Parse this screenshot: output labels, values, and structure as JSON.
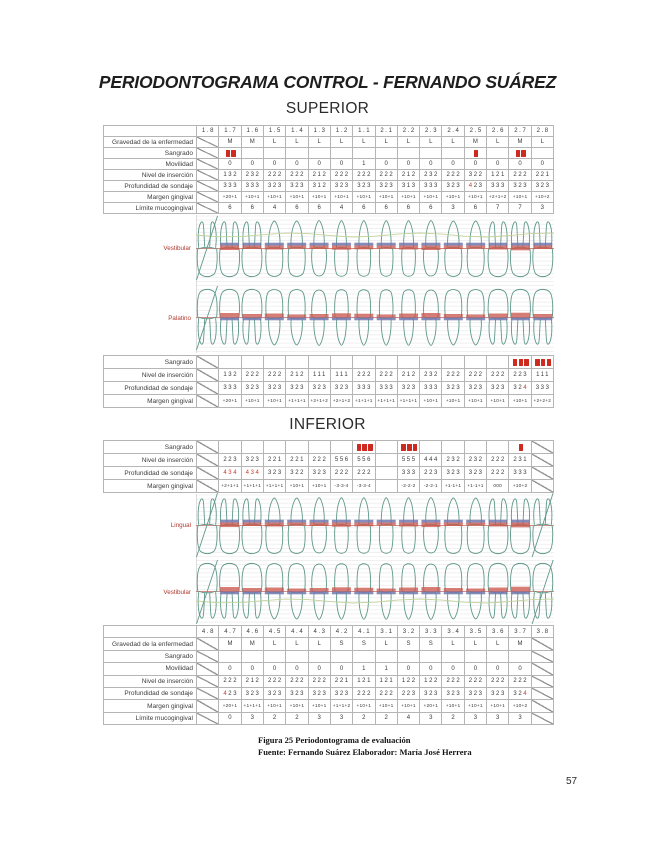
{
  "title": "PERIODONTOGRAMA CONTROL - FERNANDO SUÁREZ",
  "page_number": "57",
  "caption": {
    "line1": "Figura 25 Periodontograma de evaluación",
    "line2": "Fuente: Fernando Suárez Elaborador: María José Herrera"
  },
  "colors": {
    "bleeding_red": "#cf2a20",
    "red_value": "#c43b2e",
    "tooth_outline": "#5f9789",
    "insertion_blue": "#7178b0",
    "gingival_red": "#c9534a",
    "mucogingival_green": "#c3d39b",
    "view_label_red": "#b03a30",
    "grid_line": "#e8e8e8"
  },
  "superior": {
    "heading": "SUPERIOR",
    "tooth_numbers": [
      "1.8",
      "1.7",
      "1.6",
      "1.5",
      "1.4",
      "1.3",
      "1.2",
      "1.1",
      "2.1",
      "2.2",
      "2.3",
      "2.4",
      "2.5",
      "2.6",
      "2.7",
      "2.8"
    ],
    "views": {
      "vestibular": "Vestibular",
      "palatino": "Palatino"
    },
    "main_table": {
      "header": true,
      "missing": [
        0
      ],
      "rows": [
        {
          "label": "Gravedad de la enfermedad",
          "cells": [
            "",
            "M",
            "M",
            "L",
            "L",
            "L",
            "L",
            "L",
            "L",
            "L",
            "L",
            "L",
            "M",
            "L",
            "M",
            "L"
          ]
        },
        {
          "label": "Sangrado",
          "type": "sangrado",
          "cells": [
            0,
            2,
            0,
            0,
            0,
            0,
            0,
            0,
            0,
            0,
            0,
            0,
            1,
            0,
            2,
            0
          ]
        },
        {
          "label": "Movilidad",
          "cells": [
            "",
            "0",
            "0",
            "0",
            "0",
            "0",
            "0",
            "1",
            "0",
            "0",
            "0",
            "0",
            "0",
            "0",
            "0",
            "0"
          ]
        },
        {
          "label": "Nivel de inserción",
          "cells": [
            "",
            "132",
            "232",
            "222",
            "222",
            "212",
            "222",
            "222",
            "222",
            "212",
            "232",
            "222",
            "322",
            "121",
            "222",
            "221"
          ]
        },
        {
          "label": "Profundidad de sondaje",
          "cells": [
            "",
            "333",
            "333",
            "323",
            "323",
            "312",
            "323",
            "323",
            "323",
            "313",
            "333",
            "323",
            {
              "t": "423",
              "red": [
                0
              ]
            },
            "333",
            "323",
            "323"
          ]
        },
        {
          "label": "Margen gingival",
          "small": true,
          "cells": [
            "",
            "+20+1",
            "+10+1",
            "+10+1",
            "+10+1",
            "+10+1",
            "+10+1",
            "+10+1",
            "+10+1",
            "+10+1",
            "+10+1",
            "+10+1",
            "+10+1",
            "+2+1+2",
            "+10+1",
            "+10+2"
          ]
        },
        {
          "label": "Límite mucogingival",
          "cells": [
            "",
            "6",
            "6",
            "4",
            "6",
            "6",
            "4",
            "6",
            "6",
            "6",
            "6",
            "3",
            "6",
            "7",
            "7",
            "3"
          ]
        }
      ]
    },
    "palatal_table": {
      "header": false,
      "missing": [
        0
      ],
      "rows": [
        {
          "label": "Sangrado",
          "type": "sangrado",
          "cells": [
            0,
            0,
            0,
            0,
            0,
            0,
            0,
            0,
            0,
            0,
            0,
            0,
            0,
            0,
            3,
            3
          ]
        },
        {
          "label": "Nivel de inserción",
          "cells": [
            "",
            "132",
            "222",
            "222",
            "212",
            "111",
            "111",
            "222",
            "222",
            "212",
            "232",
            "222",
            "222",
            "222",
            "223",
            "111"
          ]
        },
        {
          "label": "Profundidad de sondaje",
          "cells": [
            "",
            "333",
            "323",
            "323",
            "323",
            "323",
            "323",
            "333",
            "333",
            "323",
            "333",
            "323",
            "323",
            "323",
            {
              "t": "324",
              "red": [
                2
              ]
            },
            "333"
          ]
        },
        {
          "label": "Margen gingival",
          "small": true,
          "cells": [
            "",
            "+20+1",
            "+10+1",
            "+10+1",
            "+1+1+1",
            "+2+1+2",
            "+2+1+2",
            "+1+1+1",
            "+1+1+1",
            "+1+1+1",
            "+10+1",
            "+10+1",
            "+10+1",
            "+10+1",
            "+10+1",
            "+2+2+2"
          ]
        }
      ]
    }
  },
  "inferior": {
    "heading": "INFERIOR",
    "tooth_numbers": [
      "4.8",
      "4.7",
      "4.6",
      "4.5",
      "4.4",
      "4.3",
      "4.2",
      "4.1",
      "3.1",
      "3.2",
      "3.3",
      "3.4",
      "3.5",
      "3.6",
      "3.7",
      "3.8"
    ],
    "views": {
      "lingual": "Lingual",
      "vestibular": "Vestibular"
    },
    "lingual_table": {
      "header": false,
      "missing": [
        0,
        15
      ],
      "rows": [
        {
          "label": "Sangrado",
          "type": "sangrado",
          "cells": [
            0,
            0,
            0,
            0,
            0,
            0,
            0,
            3,
            0,
            3,
            0,
            0,
            0,
            0,
            1,
            0
          ]
        },
        {
          "label": "Nivel de inserción",
          "cells": [
            "",
            "223",
            "323",
            "221",
            "221",
            "222",
            "556",
            "556",
            "",
            "555",
            "444",
            "232",
            "232",
            "222",
            "231",
            ""
          ]
        },
        {
          "label": "Profundidad de sondaje",
          "cells": [
            "",
            {
              "t": "434",
              "red": [
                0,
                1,
                2
              ]
            },
            {
              "t": "434",
              "red": [
                0,
                1,
                2
              ]
            },
            "323",
            "322",
            "323",
            "222",
            "222",
            "",
            "333",
            "223",
            "323",
            "323",
            "222",
            "333",
            ""
          ]
        },
        {
          "label": "Margen gingival",
          "small": true,
          "cells": [
            "",
            "+2+1+1",
            "+1+1+1",
            "+1+1+1",
            "+10+1",
            "+10+1",
            "-3-3-4",
            "-3-3-4",
            "",
            "-2-2-2",
            "-2-2-1",
            "+1-1+1",
            "+1-1+1",
            "000",
            "+10+2",
            ""
          ]
        }
      ]
    },
    "main_table": {
      "header": true,
      "missing": [
        0,
        15
      ],
      "rows": [
        {
          "label": "Gravedad de la enfermedad",
          "cells": [
            "",
            "M",
            "M",
            "L",
            "L",
            "L",
            "S",
            "S",
            "L",
            "S",
            "S",
            "L",
            "L",
            "L",
            "M",
            ""
          ]
        },
        {
          "label": "Sangrado",
          "type": "sangrado",
          "cells": [
            0,
            0,
            0,
            0,
            0,
            0,
            0,
            0,
            0,
            0,
            0,
            0,
            0,
            0,
            0,
            0
          ]
        },
        {
          "label": "Movilidad",
          "cells": [
            "",
            "0",
            "0",
            "0",
            "0",
            "0",
            "0",
            "1",
            "1",
            "0",
            "0",
            "0",
            "0",
            "0",
            "0",
            ""
          ]
        },
        {
          "label": "Nivel de inserción",
          "cells": [
            "",
            "222",
            "212",
            "222",
            "222",
            "222",
            "221",
            "121",
            "121",
            "122",
            "122",
            "222",
            "222",
            "222",
            "222",
            ""
          ]
        },
        {
          "label": "Profundidad de sondaje",
          "cells": [
            "",
            {
              "t": "423",
              "red": [
                0
              ]
            },
            "323",
            "323",
            "323",
            "323",
            "323",
            "222",
            "222",
            "223",
            "323",
            "323",
            "323",
            "323",
            {
              "t": "324",
              "red": [
                2
              ]
            },
            ""
          ]
        },
        {
          "label": "Margen gingival",
          "small": true,
          "cells": [
            "",
            "+20+1",
            "+1+1+1",
            "+10+1",
            "+10+1",
            "+10+1",
            "+1+1+2",
            "+10+1",
            "+10+1",
            "+10+1",
            "+20+1",
            "+10+1",
            "+10+1",
            "+10+1",
            "+10+2",
            ""
          ]
        },
        {
          "label": "Límite mucogingival",
          "cells": [
            "",
            "0",
            "3",
            "2",
            "2",
            "3",
            "3",
            "2",
            "2",
            "4",
            "3",
            "2",
            "3",
            "3",
            "3",
            ""
          ]
        }
      ]
    }
  }
}
